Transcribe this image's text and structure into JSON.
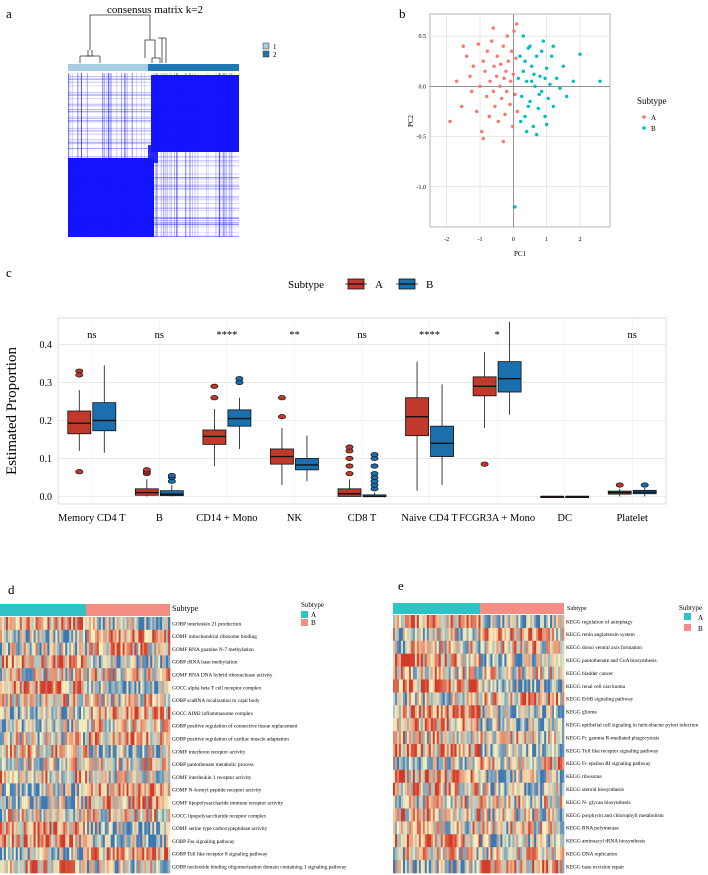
{
  "panel_labels": {
    "a": "a",
    "b": "b",
    "c": "c",
    "d": "d",
    "e": "e"
  },
  "chart_data": [
    {
      "id": "a",
      "type": "heatmap",
      "title": "consensus matrix k=2",
      "legend": [
        "1",
        "2"
      ],
      "colors": {
        "cluster1": "#a6cde3",
        "cluster2": "#1f78b4",
        "matrix": "#1414ff"
      }
    },
    {
      "id": "b",
      "type": "scatter",
      "xlabel": "PC1",
      "ylabel": "PC2",
      "xlim": [
        -2.5,
        2.9
      ],
      "ylim": [
        -1.4,
        0.72
      ],
      "xticks": [
        -2,
        -1,
        0,
        1,
        2
      ],
      "yticks": [
        -1.0,
        -0.5,
        0.0,
        0.5
      ],
      "ytick_labels": [
        "-1.0",
        "-0.5",
        "0.0",
        "0.5"
      ],
      "legend_title": "Subtype",
      "series": [
        {
          "name": "A",
          "color": "#f8766d",
          "points": [
            [
              -1.7,
              0.05
            ],
            [
              -1.55,
              -0.2
            ],
            [
              -1.4,
              0.3
            ],
            [
              -1.3,
              0.1
            ],
            [
              -1.25,
              -0.05
            ],
            [
              -1.2,
              0.2
            ],
            [
              -1.1,
              -0.25
            ],
            [
              -1.05,
              0.42
            ],
            [
              -1.0,
              0.0
            ],
            [
              -0.95,
              -0.45
            ],
            [
              -0.9,
              0.25
            ],
            [
              -0.85,
              0.15
            ],
            [
              -0.8,
              -0.1
            ],
            [
              -0.78,
              0.35
            ],
            [
              -0.72,
              -0.3
            ],
            [
              -0.7,
              0.05
            ],
            [
              -0.65,
              0.45
            ],
            [
              -0.6,
              -0.05
            ],
            [
              -0.58,
              0.2
            ],
            [
              -0.55,
              -0.2
            ],
            [
              -0.5,
              0.1
            ],
            [
              -0.48,
              0.3
            ],
            [
              -0.45,
              -0.35
            ],
            [
              -0.4,
              0.0
            ],
            [
              -0.38,
              0.22
            ],
            [
              -0.35,
              -0.12
            ],
            [
              -0.3,
              0.4
            ],
            [
              -0.28,
              0.08
            ],
            [
              -0.25,
              -0.28
            ],
            [
              -0.22,
              0.15
            ],
            [
              -0.2,
              -0.05
            ],
            [
              -0.18,
              0.5
            ],
            [
              -0.15,
              0.25
            ],
            [
              -0.1,
              -0.18
            ],
            [
              -0.08,
              0.05
            ],
            [
              -0.05,
              0.35
            ],
            [
              -0.02,
              -0.4
            ],
            [
              0.0,
              0.12
            ],
            [
              0.02,
              0.55
            ],
            [
              0.05,
              -0.08
            ],
            [
              0.08,
              0.28
            ],
            [
              0.1,
              0.62
            ],
            [
              0.12,
              -0.25
            ],
            [
              -1.9,
              -0.35
            ],
            [
              -0.3,
              -0.55
            ],
            [
              -0.6,
              0.58
            ],
            [
              -1.5,
              0.4
            ],
            [
              -0.9,
              -0.52
            ]
          ]
        },
        {
          "name": "B",
          "color": "#00bfc4",
          "points": [
            [
              0.2,
              0.3
            ],
            [
              0.25,
              -0.1
            ],
            [
              0.3,
              0.15
            ],
            [
              0.35,
              -0.3
            ],
            [
              0.4,
              0.05
            ],
            [
              0.45,
              0.38
            ],
            [
              0.5,
              -0.15
            ],
            [
              0.55,
              0.2
            ],
            [
              0.6,
              -0.4
            ],
            [
              0.65,
              0.0
            ],
            [
              0.7,
              0.3
            ],
            [
              0.75,
              -0.22
            ],
            [
              0.8,
              0.1
            ],
            [
              0.85,
              -0.05
            ],
            [
              0.9,
              0.45
            ],
            [
              0.95,
              -0.3
            ],
            [
              1.0,
              0.18
            ],
            [
              1.05,
              -0.12
            ],
            [
              1.1,
              0.02
            ],
            [
              1.15,
              0.3
            ],
            [
              1.2,
              -0.2
            ],
            [
              1.3,
              0.08
            ],
            [
              1.4,
              -0.02
            ],
            [
              1.5,
              0.2
            ],
            [
              1.6,
              -0.1
            ],
            [
              1.8,
              0.05
            ],
            [
              2.0,
              0.32
            ],
            [
              2.6,
              0.05
            ],
            [
              0.3,
              0.5
            ],
            [
              0.5,
              0.4
            ],
            [
              0.4,
              -0.45
            ],
            [
              0.7,
              -0.48
            ],
            [
              0.15,
              0.08
            ],
            [
              0.22,
              -0.35
            ],
            [
              0.85,
              0.35
            ],
            [
              1.0,
              -0.38
            ],
            [
              0.62,
              0.12
            ],
            [
              0.35,
              0.25
            ],
            [
              0.78,
              -0.08
            ],
            [
              0.95,
              0.08
            ],
            [
              0.05,
              -1.2
            ],
            [
              1.2,
              0.4
            ],
            [
              0.45,
              -0.2
            ],
            [
              0.55,
              0.05
            ]
          ]
        }
      ]
    },
    {
      "id": "c",
      "type": "boxplot",
      "ylabel": "Estimated Proportion",
      "legend_title": "Subtype",
      "legend": [
        "A",
        "B"
      ],
      "colors": {
        "A": "#c0392b",
        "B": "#1a6fae"
      },
      "ylim": [
        -0.02,
        0.47
      ],
      "yticks": [
        0.0,
        0.1,
        0.2,
        0.3,
        0.4
      ],
      "ytick_labels": [
        "0.0",
        "0.1",
        "0.2",
        "0.3",
        "0.4"
      ],
      "categories": [
        "Memory CD4 T",
        "B",
        "CD14 + Mono",
        "NK",
        "CD8 T",
        "Naive CD4 T",
        "FCGR3A + Mono",
        "DC",
        "Platelet"
      ],
      "significance": [
        "ns",
        "ns",
        "****",
        "**",
        "ns",
        "****",
        "*",
        "",
        "ns"
      ],
      "series": [
        {
          "name": "A",
          "boxes": [
            {
              "min": 0.12,
              "q1": 0.165,
              "median": 0.193,
              "q3": 0.225,
              "max": 0.28,
              "outliers": [
                0.33,
                0.32,
                0.065
              ]
            },
            {
              "min": 0.0,
              "q1": 0.003,
              "median": 0.01,
              "q3": 0.02,
              "max": 0.045,
              "outliers": [
                0.06,
                0.065,
                0.07
              ]
            },
            {
              "min": 0.08,
              "q1": 0.137,
              "median": 0.158,
              "q3": 0.175,
              "max": 0.23,
              "outliers": [
                0.26,
                0.29
              ]
            },
            {
              "min": 0.03,
              "q1": 0.085,
              "median": 0.105,
              "q3": 0.125,
              "max": 0.18,
              "outliers": [
                0.21,
                0.26
              ]
            },
            {
              "min": 0.0,
              "q1": 0.0,
              "median": 0.007,
              "q3": 0.02,
              "max": 0.045,
              "outliers": [
                0.06,
                0.08,
                0.1,
                0.12,
                0.13
              ]
            },
            {
              "min": 0.015,
              "q1": 0.16,
              "median": 0.21,
              "q3": 0.26,
              "max": 0.355,
              "outliers": []
            },
            {
              "min": 0.18,
              "q1": 0.265,
              "median": 0.29,
              "q3": 0.315,
              "max": 0.38,
              "outliers": [
                0.085
              ]
            },
            {
              "min": 0.0,
              "q1": 0.0,
              "median": 0.0,
              "q3": 0.0,
              "max": 0.0,
              "outliers": []
            },
            {
              "min": 0.0,
              "q1": 0.006,
              "median": 0.01,
              "q3": 0.014,
              "max": 0.02,
              "outliers": [
                0.03
              ]
            }
          ]
        },
        {
          "name": "B",
          "boxes": [
            {
              "min": 0.115,
              "q1": 0.173,
              "median": 0.2,
              "q3": 0.247,
              "max": 0.345,
              "outliers": []
            },
            {
              "min": 0.0,
              "q1": 0.002,
              "median": 0.006,
              "q3": 0.015,
              "max": 0.03,
              "outliers": [
                0.04,
                0.05,
                0.055
              ]
            },
            {
              "min": 0.125,
              "q1": 0.185,
              "median": 0.205,
              "q3": 0.228,
              "max": 0.26,
              "outliers": [
                0.3,
                0.31
              ]
            },
            {
              "min": 0.04,
              "q1": 0.07,
              "median": 0.083,
              "q3": 0.1,
              "max": 0.16,
              "outliers": []
            },
            {
              "min": 0.0,
              "q1": 0.0,
              "median": 0.0,
              "q3": 0.004,
              "max": 0.01,
              "outliers": [
                0.02,
                0.03,
                0.04,
                0.05,
                0.06,
                0.08,
                0.1,
                0.11
              ]
            },
            {
              "min": 0.03,
              "q1": 0.105,
              "median": 0.14,
              "q3": 0.185,
              "max": 0.295,
              "outliers": []
            },
            {
              "min": 0.215,
              "q1": 0.275,
              "median": 0.31,
              "q3": 0.355,
              "max": 0.46,
              "outliers": []
            },
            {
              "min": 0.0,
              "q1": 0.0,
              "median": 0.0,
              "q3": 0.0,
              "max": 0.0,
              "outliers": []
            },
            {
              "min": 0.0,
              "q1": 0.007,
              "median": 0.011,
              "q3": 0.016,
              "max": 0.022,
              "outliers": [
                0.03
              ]
            }
          ]
        }
      ]
    },
    {
      "id": "d",
      "type": "heatmap",
      "annotation_title": "Subtype",
      "legend_title": "Subtype",
      "legend": [
        "A",
        "B"
      ],
      "colors": {
        "A": "#2ec4c6",
        "B": "#f28e84",
        "low": "#3b78b5",
        "mid": "#fbf2c0",
        "high": "#d23a2a"
      },
      "rows": [
        "GOBP interleukin 21 production",
        "GOMF mitochondrial ribosome binding",
        "GOMF RNA guanine N-7 methylation",
        "GOBP rRNA base methylation",
        "GOMF RNA DNA hybrid ribonuclease activity",
        "GOCC alpha beta T cell receptor complex",
        "GOBP scaRNA localization to cajal body",
        "GOCC AIM2 inflammasome complex",
        "GOBP positive regulation of connective tissue replacement",
        "GOBP positive regulation of cardiac muscle adaptation",
        "GOMF interferon receptor activity",
        "GOBP pantothenate metabolic process",
        "GOMF interleukin 1 receptor activity",
        "GOMF N-formyl peptide receptor activity",
        "GOMF lipopolysaccharide immune receptor activity",
        "GOCC lipopolysaccharide receptor complex",
        "GOMF serine type carboxypeptidase activity",
        "GOBP Fas signaling pathway",
        "GOBP Toll like receptor 8 signaling pathway",
        "GOBP nucleotide binding oligomerization domain containing 1 signaling pathway"
      ]
    },
    {
      "id": "e",
      "type": "heatmap",
      "annotation_title": "Subtype",
      "legend_title": "Subtype",
      "legend": [
        "A",
        "B"
      ],
      "colors": {
        "A": "#2ec4c6",
        "B": "#f28e84",
        "low": "#3b78b5",
        "mid": "#fbf2c0",
        "high": "#d23a2a"
      },
      "rows": [
        "KEGG regulation of autophagy",
        "KEGG renin angiotensin system",
        "KEGG dorso ventral axis formation",
        "KEGG pantothenate and CoA biosynthesis",
        "KEGG bladder cancer",
        "KEGG renal cell carcinoma",
        "KEGG ErbB signaling pathway",
        "KEGG glioma",
        "KEGG epithelial cell signaling in helicobacter pylori infection",
        "KEGG Fc gamma R-mediated phagocytosis",
        "KEGG Toll like receptor signaling pathway",
        "KEGG Fc epsilon RI signaling pathway",
        "KEGG ribosome",
        "KEGG steroid biosynthesis",
        "KEGG N- glycan biosynthesis",
        "KEGG porphyrin and chlorophyll metabolism",
        "KEGG RNA polymerase",
        "KEGG aminoacyl tRNA biosynthesis",
        "KEGG DNA replication",
        "KEGG base excision repair"
      ]
    }
  ]
}
